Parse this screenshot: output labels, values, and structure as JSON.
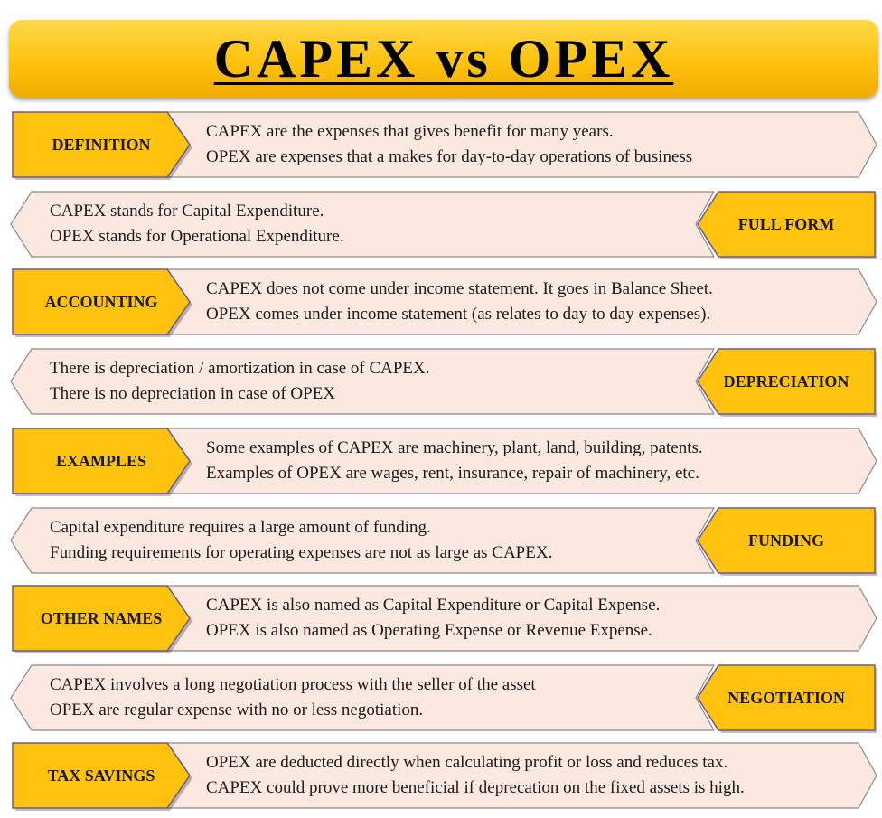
{
  "title": "CAPEX vs OPEX",
  "colors": {
    "label_fill": "#ffc20e",
    "label_border": "#6b5a8e",
    "text_fill": "#fbe9e1",
    "text_border": "#8a8a8a"
  },
  "rows": [
    {
      "label": "DEFINITION",
      "side": "left",
      "line1": "CAPEX are the expenses that gives benefit for many years.",
      "line2": "OPEX are expenses that a makes for day-to-day operations of business"
    },
    {
      "label": "FULL FORM",
      "side": "right",
      "line1": "CAPEX stands for Capital Expenditure.",
      "line2": "OPEX stands for Operational Expenditure."
    },
    {
      "label": "ACCOUNTING",
      "side": "left",
      "line1": "CAPEX does not come under income statement. It goes in Balance Sheet.",
      "line2": "OPEX comes under income statement (as relates to day to day expenses)."
    },
    {
      "label": "DEPRECIATION",
      "side": "right",
      "line1": "There is depreciation / amortization in case of CAPEX.",
      "line2": "There is no depreciation in case of OPEX"
    },
    {
      "label": "EXAMPLES",
      "side": "left",
      "line1": "Some examples of CAPEX are machinery, plant, land, building, patents.",
      "line2": "Examples of OPEX are wages, rent, insurance, repair of machinery, etc."
    },
    {
      "label": "FUNDING",
      "side": "right",
      "line1": "Capital expenditure requires a large amount of funding.",
      "line2": "Funding requirements for operating expenses are not as large as CAPEX."
    },
    {
      "label": "OTHER NAMES",
      "side": "left",
      "line1": "CAPEX is also named as Capital Expenditure or Capital Expense.",
      "line2": "OPEX is also named as Operating Expense or Revenue Expense."
    },
    {
      "label": "NEGOTIATION",
      "side": "right",
      "line1": "CAPEX involves a long negotiation process with the seller of the asset",
      "line2": "OPEX are regular expense with no or less negotiation."
    },
    {
      "label": "TAX SAVINGS",
      "side": "left",
      "line1": "OPEX are deducted directly when calculating profit or loss and reduces tax.",
      "line2": "CAPEX could prove more beneficial if deprecation on the fixed assets is high."
    }
  ]
}
